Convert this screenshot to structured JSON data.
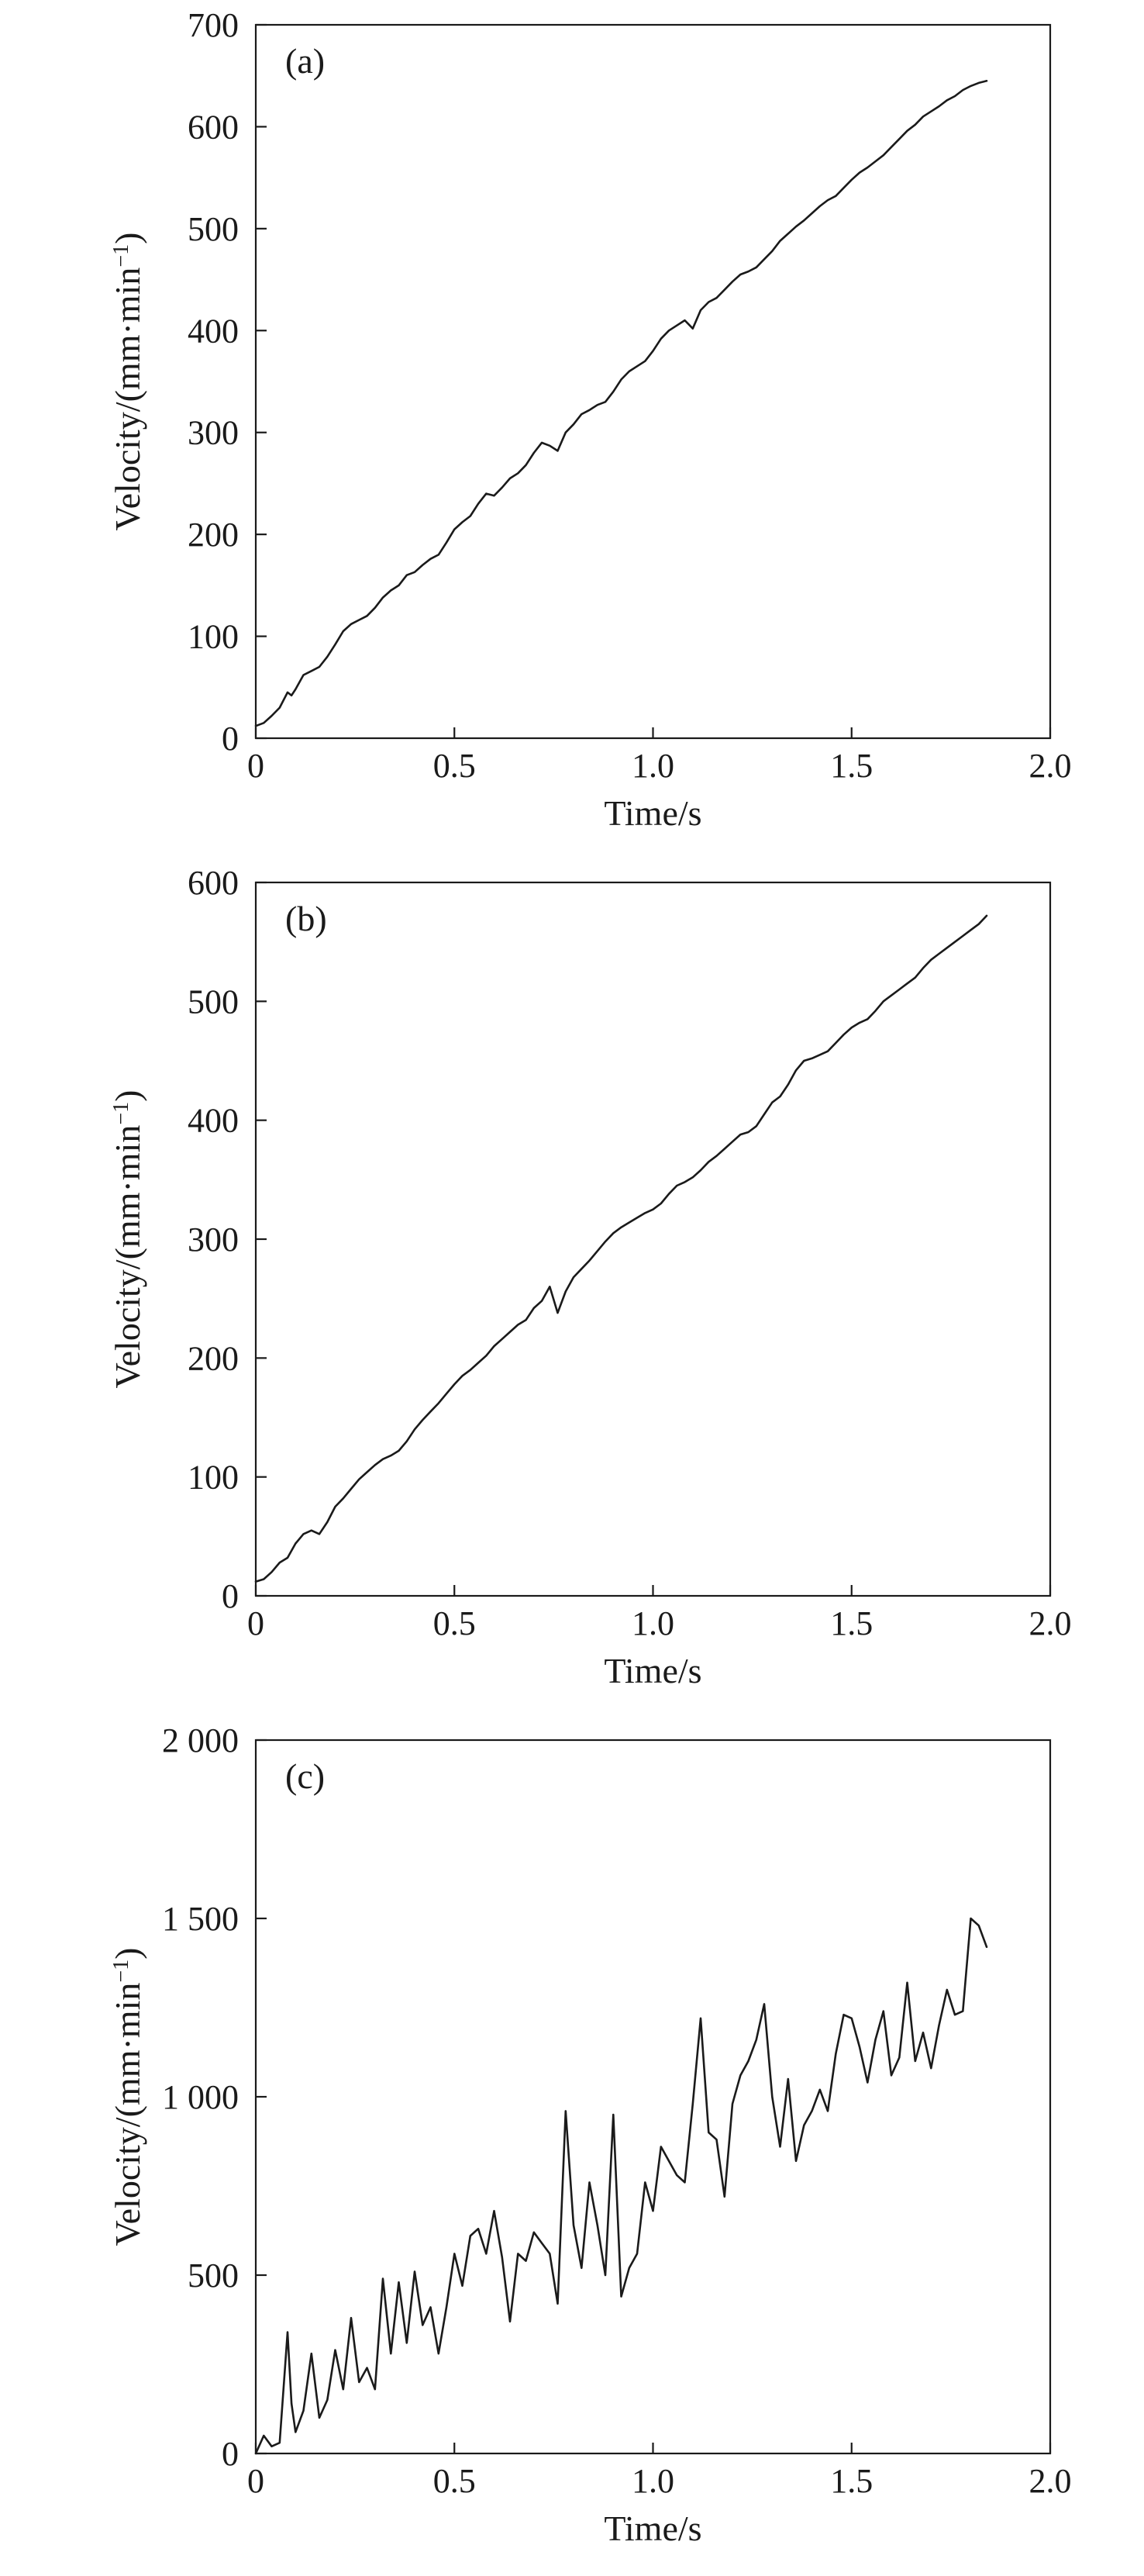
{
  "chart_data": [
    {
      "type": "line",
      "panel_label": "(a)",
      "xlabel": "Time/s",
      "ylabel_main": "Velocity/(mm·min",
      "ylabel_sup": "−1",
      "ylabel_end": ")",
      "xlim": [
        0,
        2.0
      ],
      "ylim": [
        0,
        700
      ],
      "xticks": [
        0,
        0.5,
        1.0,
        1.5,
        2.0
      ],
      "xtick_labels": [
        "0",
        "0.5",
        "1.0",
        "1.5",
        "2.0"
      ],
      "yticks": [
        0,
        100,
        200,
        300,
        400,
        500,
        600,
        700
      ],
      "ytick_labels": [
        "0",
        "100",
        "200",
        "300",
        "400",
        "500",
        "600",
        "700"
      ],
      "grid": false,
      "series": [
        {
          "x": [
            0.0,
            0.02,
            0.04,
            0.06,
            0.08,
            0.09,
            0.1,
            0.12,
            0.14,
            0.16,
            0.18,
            0.2,
            0.22,
            0.24,
            0.26,
            0.28,
            0.3,
            0.32,
            0.34,
            0.36,
            0.38,
            0.4,
            0.42,
            0.44,
            0.46,
            0.48,
            0.5,
            0.52,
            0.54,
            0.56,
            0.58,
            0.6,
            0.62,
            0.64,
            0.66,
            0.68,
            0.7,
            0.72,
            0.74,
            0.76,
            0.78,
            0.8,
            0.82,
            0.84,
            0.86,
            0.88,
            0.9,
            0.92,
            0.94,
            0.96,
            0.98,
            1.0,
            1.02,
            1.04,
            1.06,
            1.08,
            1.1,
            1.12,
            1.14,
            1.16,
            1.18,
            1.2,
            1.22,
            1.24,
            1.26,
            1.28,
            1.3,
            1.32,
            1.34,
            1.36,
            1.38,
            1.4,
            1.42,
            1.44,
            1.46,
            1.48,
            1.5,
            1.52,
            1.54,
            1.56,
            1.58,
            1.6,
            1.62,
            1.64,
            1.66,
            1.68,
            1.7,
            1.72,
            1.74,
            1.76,
            1.78,
            1.8,
            1.82,
            1.84
          ],
          "y": [
            12,
            15,
            22,
            30,
            45,
            42,
            48,
            62,
            66,
            70,
            80,
            92,
            105,
            112,
            116,
            120,
            128,
            138,
            145,
            150,
            160,
            163,
            170,
            176,
            180,
            192,
            205,
            212,
            218,
            230,
            240,
            238,
            246,
            255,
            260,
            268,
            280,
            290,
            287,
            282,
            300,
            308,
            318,
            322,
            327,
            330,
            340,
            352,
            360,
            365,
            370,
            380,
            392,
            400,
            405,
            410,
            402,
            420,
            428,
            432,
            440,
            448,
            455,
            458,
            462,
            470,
            478,
            488,
            495,
            502,
            508,
            515,
            522,
            528,
            532,
            540,
            548,
            555,
            560,
            566,
            572,
            580,
            588,
            596,
            602,
            610,
            615,
            620,
            626,
            630,
            636,
            640,
            643,
            645
          ]
        }
      ]
    },
    {
      "type": "line",
      "panel_label": "(b)",
      "xlabel": "Time/s",
      "ylabel_main": "Velocity/(mm·min",
      "ylabel_sup": "−1",
      "ylabel_end": ")",
      "xlim": [
        0,
        2.0
      ],
      "ylim": [
        0,
        600
      ],
      "xticks": [
        0,
        0.5,
        1.0,
        1.5,
        2.0
      ],
      "xtick_labels": [
        "0",
        "0.5",
        "1.0",
        "1.5",
        "2.0"
      ],
      "yticks": [
        0,
        100,
        200,
        300,
        400,
        500,
        600
      ],
      "ytick_labels": [
        "0",
        "100",
        "200",
        "300",
        "400",
        "500",
        "600"
      ],
      "grid": false,
      "series": [
        {
          "x": [
            0.0,
            0.02,
            0.04,
            0.06,
            0.08,
            0.1,
            0.12,
            0.14,
            0.16,
            0.18,
            0.2,
            0.22,
            0.24,
            0.26,
            0.28,
            0.3,
            0.32,
            0.34,
            0.36,
            0.38,
            0.4,
            0.42,
            0.44,
            0.46,
            0.48,
            0.5,
            0.52,
            0.54,
            0.56,
            0.58,
            0.6,
            0.62,
            0.64,
            0.66,
            0.68,
            0.7,
            0.72,
            0.74,
            0.76,
            0.78,
            0.8,
            0.82,
            0.84,
            0.86,
            0.88,
            0.9,
            0.92,
            0.94,
            0.96,
            0.98,
            1.0,
            1.02,
            1.04,
            1.06,
            1.08,
            1.1,
            1.12,
            1.14,
            1.16,
            1.18,
            1.2,
            1.22,
            1.24,
            1.26,
            1.28,
            1.3,
            1.32,
            1.34,
            1.36,
            1.38,
            1.4,
            1.42,
            1.44,
            1.46,
            1.48,
            1.5,
            1.52,
            1.54,
            1.56,
            1.58,
            1.6,
            1.62,
            1.64,
            1.66,
            1.68,
            1.7,
            1.72,
            1.74,
            1.76,
            1.78,
            1.8,
            1.82,
            1.84
          ],
          "y": [
            12,
            14,
            20,
            28,
            32,
            44,
            52,
            55,
            52,
            62,
            75,
            82,
            90,
            98,
            104,
            110,
            115,
            118,
            122,
            130,
            140,
            148,
            155,
            162,
            170,
            178,
            185,
            190,
            196,
            202,
            210,
            216,
            222,
            228,
            232,
            242,
            248,
            260,
            238,
            256,
            268,
            275,
            282,
            290,
            298,
            305,
            310,
            314,
            318,
            322,
            325,
            330,
            338,
            345,
            348,
            352,
            358,
            365,
            370,
            376,
            382,
            388,
            390,
            395,
            405,
            415,
            420,
            430,
            442,
            450,
            452,
            455,
            458,
            465,
            472,
            478,
            482,
            485,
            492,
            500,
            505,
            510,
            515,
            520,
            528,
            535,
            540,
            545,
            550,
            555,
            560,
            565,
            572
          ]
        }
      ]
    },
    {
      "type": "line",
      "panel_label": "(c)",
      "xlabel": "Time/s",
      "ylabel_main": "Velocity/(mm·min",
      "ylabel_sup": "−1",
      "ylabel_end": ")",
      "xlim": [
        0,
        2.0
      ],
      "ylim": [
        0,
        2000
      ],
      "xticks": [
        0,
        0.5,
        1.0,
        1.5,
        2.0
      ],
      "xtick_labels": [
        "0",
        "0.5",
        "1.0",
        "1.5",
        "2.0"
      ],
      "yticks": [
        0,
        500,
        1000,
        1500,
        2000
      ],
      "ytick_labels": [
        "0",
        "500",
        "1 000",
        "1 500",
        "2 000"
      ],
      "grid": false,
      "series": [
        {
          "x": [
            0.0,
            0.02,
            0.04,
            0.06,
            0.08,
            0.09,
            0.1,
            0.12,
            0.14,
            0.16,
            0.18,
            0.2,
            0.22,
            0.24,
            0.26,
            0.28,
            0.3,
            0.32,
            0.34,
            0.36,
            0.38,
            0.4,
            0.42,
            0.44,
            0.46,
            0.48,
            0.5,
            0.52,
            0.54,
            0.56,
            0.58,
            0.6,
            0.62,
            0.64,
            0.66,
            0.68,
            0.7,
            0.72,
            0.74,
            0.76,
            0.78,
            0.8,
            0.82,
            0.84,
            0.86,
            0.88,
            0.9,
            0.92,
            0.94,
            0.96,
            0.98,
            1.0,
            1.02,
            1.04,
            1.06,
            1.08,
            1.1,
            1.12,
            1.14,
            1.16,
            1.18,
            1.2,
            1.22,
            1.24,
            1.26,
            1.28,
            1.3,
            1.32,
            1.34,
            1.36,
            1.38,
            1.4,
            1.42,
            1.44,
            1.46,
            1.48,
            1.5,
            1.52,
            1.54,
            1.56,
            1.58,
            1.6,
            1.62,
            1.64,
            1.66,
            1.68,
            1.7,
            1.72,
            1.74,
            1.76,
            1.78,
            1.8,
            1.82,
            1.84
          ],
          "y": [
            0,
            50,
            20,
            30,
            340,
            140,
            60,
            120,
            280,
            100,
            150,
            290,
            180,
            380,
            200,
            240,
            180,
            490,
            280,
            480,
            310,
            510,
            360,
            410,
            280,
            410,
            560,
            470,
            610,
            630,
            560,
            680,
            550,
            370,
            560,
            540,
            620,
            590,
            560,
            420,
            960,
            640,
            520,
            760,
            640,
            500,
            950,
            440,
            520,
            560,
            760,
            680,
            860,
            820,
            780,
            760,
            980,
            1220,
            900,
            880,
            720,
            980,
            1060,
            1100,
            1160,
            1260,
            1000,
            860,
            1050,
            820,
            920,
            960,
            1020,
            960,
            1120,
            1230,
            1220,
            1140,
            1040,
            1160,
            1240,
            1060,
            1110,
            1320,
            1100,
            1180,
            1080,
            1200,
            1300,
            1230,
            1240,
            1500,
            1480,
            1420
          ]
        }
      ]
    }
  ]
}
